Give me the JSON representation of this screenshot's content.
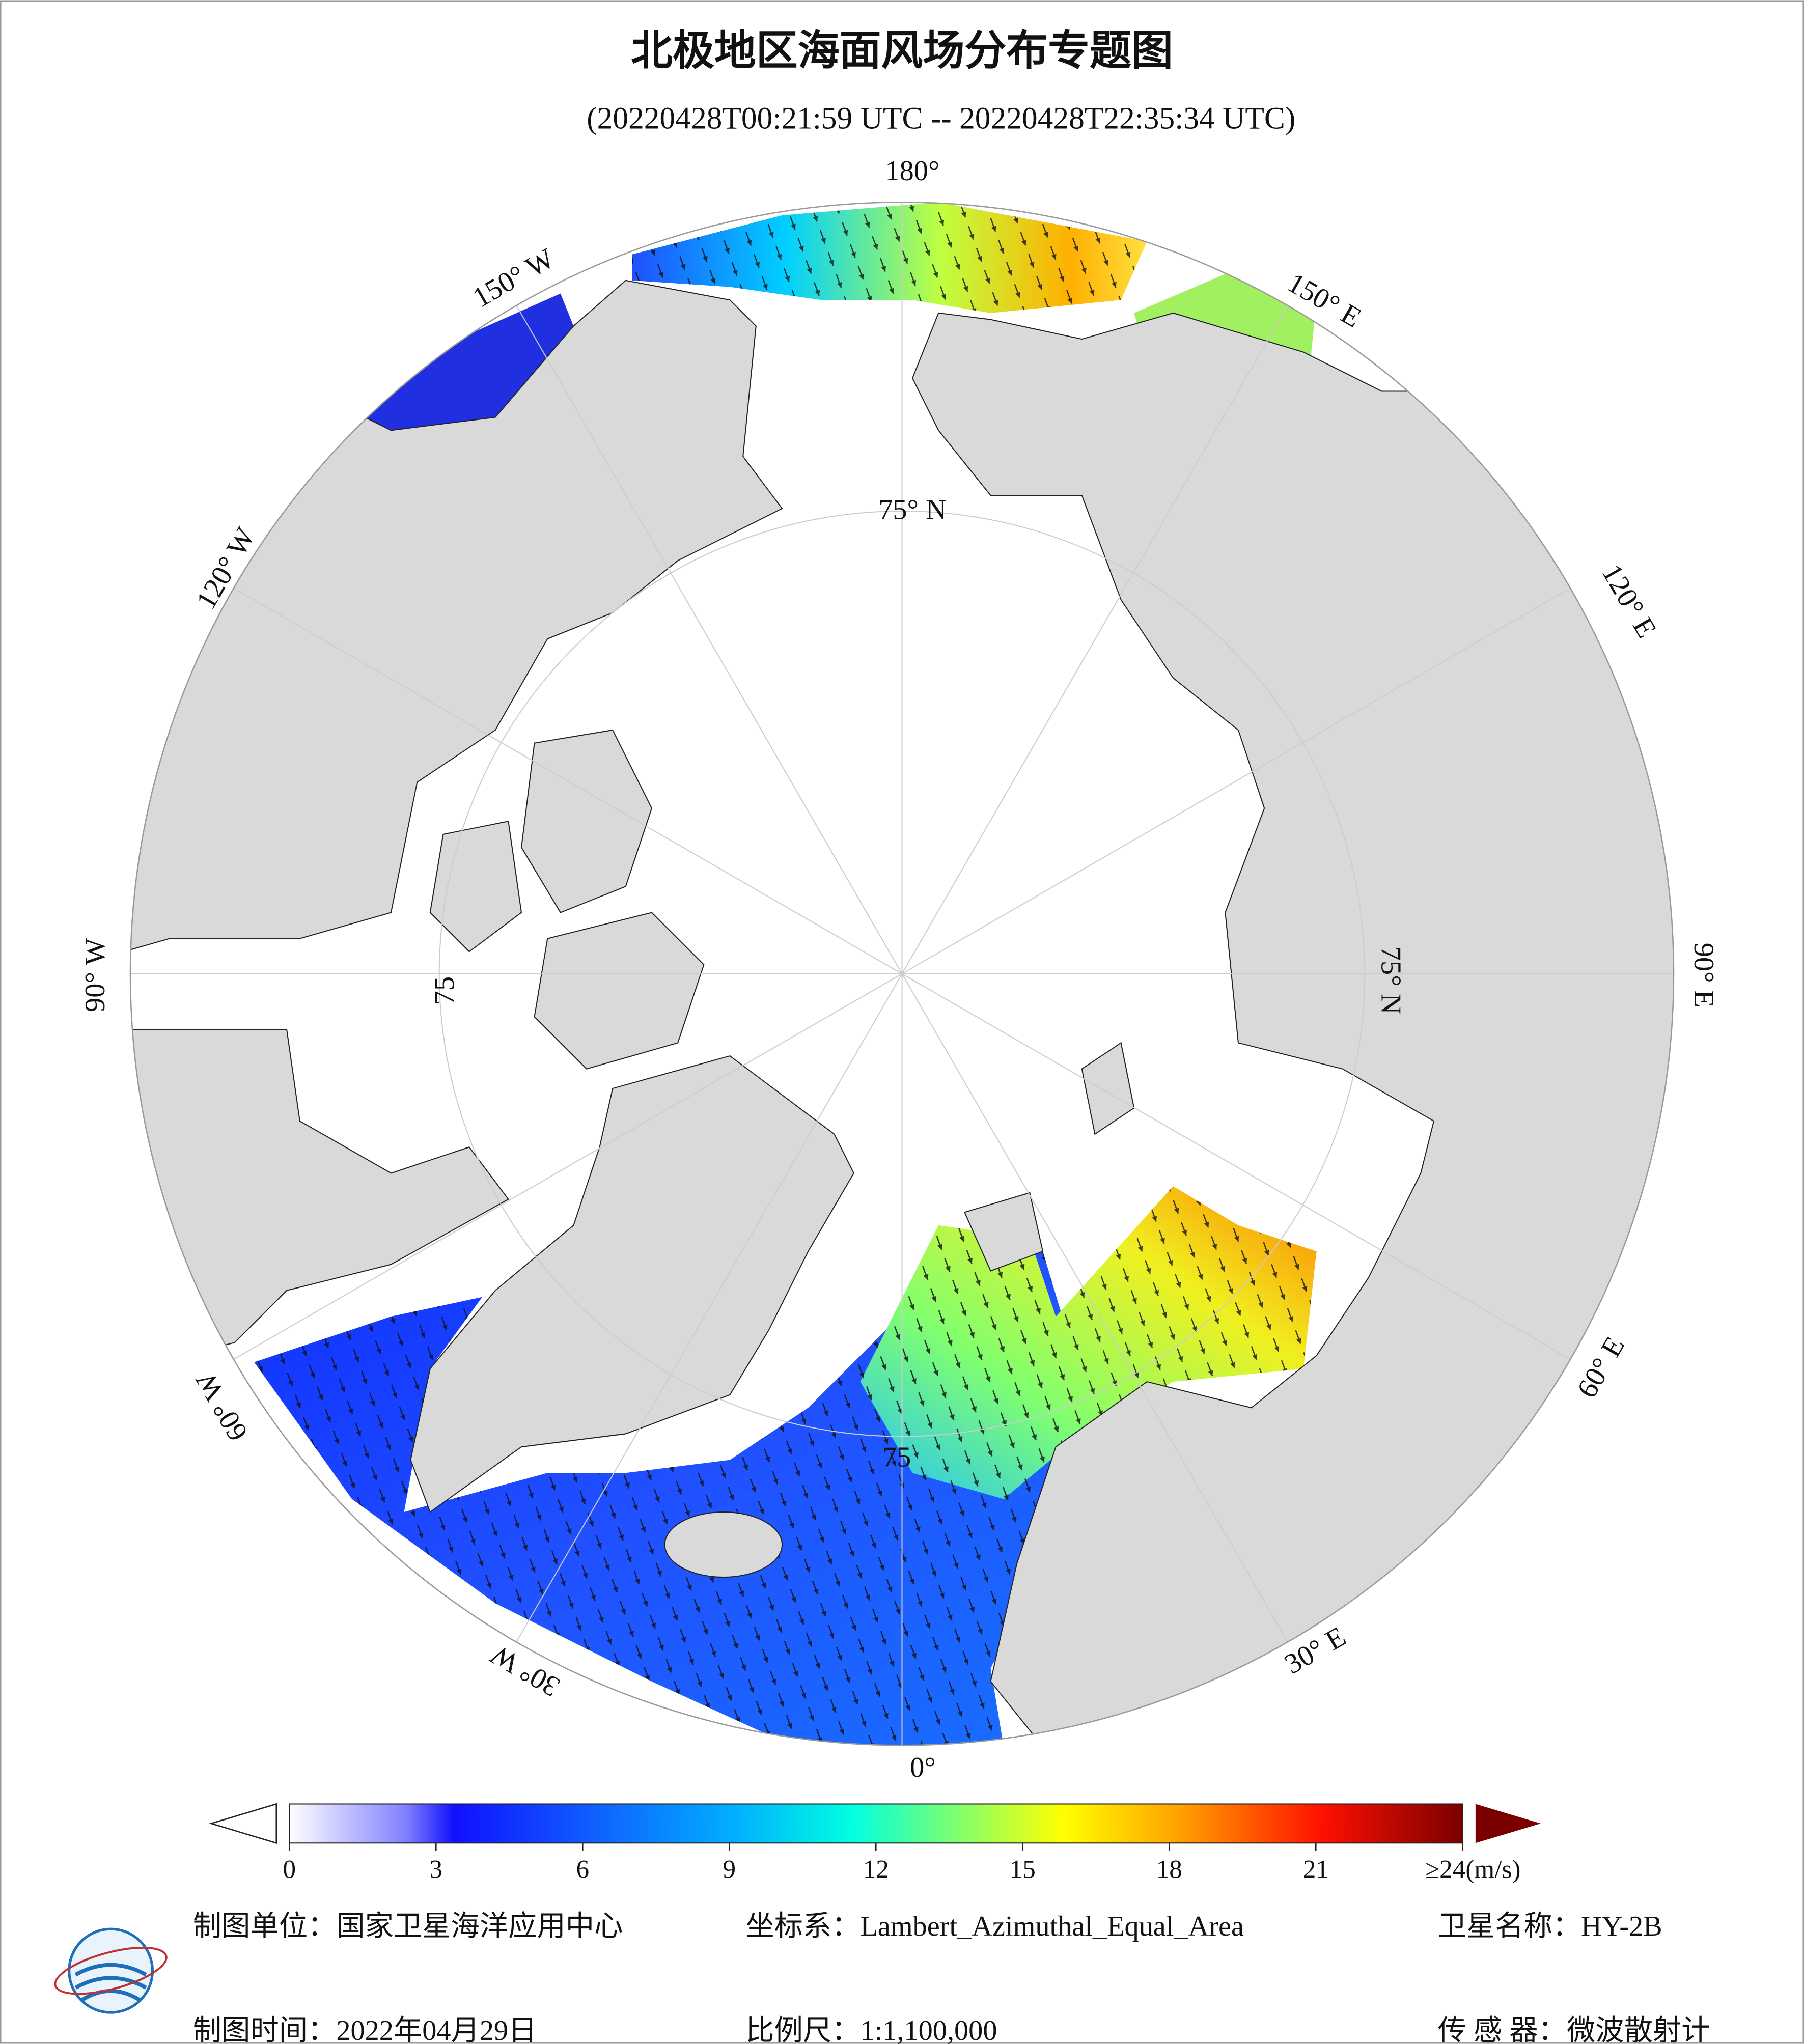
{
  "header": {
    "title": "北极地区海面风场分布专题图",
    "subtitle": "(20220428T00:21:59 UTC -- 20220428T22:35:34 UTC)"
  },
  "map": {
    "graticule_labels": [
      "180°",
      "150° W",
      "120° W",
      "90° W",
      "60° W",
      "30° W",
      "0°",
      "30° E",
      "60° E",
      "90° E",
      "120° E",
      "150° E"
    ],
    "latitude_labels": [
      "75° N",
      "75° N",
      "75",
      "75"
    ]
  },
  "colorbar": {
    "range": [
      0,
      24
    ],
    "ticks": [
      0,
      3,
      6,
      9,
      12,
      15,
      18,
      21,
      {
        "value": 24,
        "label": "≥24(m/s)"
      }
    ]
  },
  "footer": {
    "unit": "制图单位：国家卫星海洋应用中心",
    "crs": "坐标系：Lambert_Azimuthal_Equal_Area",
    "satellite": "卫星名称：HY-2B",
    "date": "制图时间：2022年04月29日",
    "scale": "比例尺：1:1,100,000",
    "sensor": "传 感 器：微波散射计"
  }
}
